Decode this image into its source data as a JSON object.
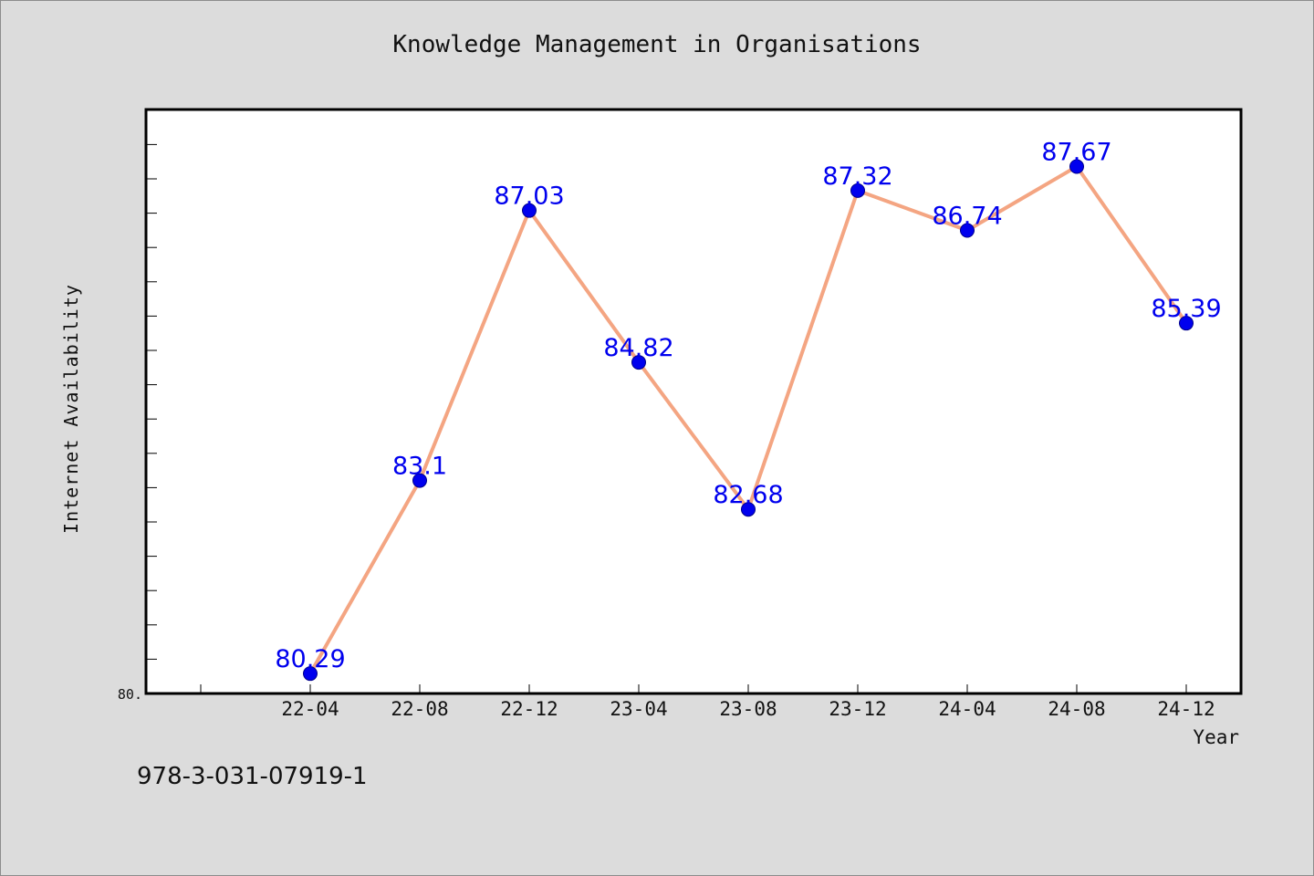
{
  "chart_data": {
    "type": "line",
    "title": "Knowledge Management in Organisations",
    "xlabel": "Year",
    "ylabel": "Internet Availability",
    "x": [
      "22-04",
      "22-08",
      "22-12",
      "23-04",
      "23-08",
      "23-12",
      "24-04",
      "24-08",
      "24-12"
    ],
    "series": [
      {
        "values": [
          80.29,
          83.1,
          87.03,
          84.82,
          82.68,
          87.32,
          86.74,
          87.67,
          85.39
        ],
        "data_labels": [
          "80.29",
          "83.1",
          "87.03",
          "84.82",
          "82.68",
          "87.32",
          "86.74",
          "87.67",
          "85.39"
        ]
      }
    ],
    "y_tick_labels": [
      "80."
    ],
    "ylim": [
      80.0,
      88.5
    ],
    "grid": false,
    "colors": {
      "line": "#f4a582",
      "marker": "#0000ee",
      "data_label": "#0000ee",
      "background": "#dcdcdc",
      "plot_area": "#ffffff"
    }
  },
  "footer_text": "978-3-031-07919-1"
}
